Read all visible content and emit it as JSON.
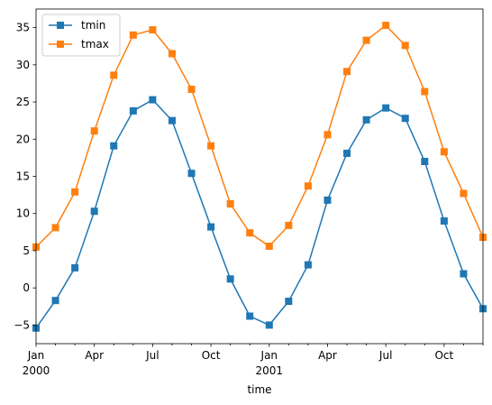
{
  "chart_data": {
    "type": "line",
    "xlabel": "time",
    "ylabel": "",
    "ylim": [
      -7.5,
      37.5
    ],
    "yticks": [
      -5,
      0,
      5,
      10,
      15,
      20,
      25,
      30,
      35
    ],
    "x": [
      "2000-01",
      "2000-02",
      "2000-03",
      "2000-04",
      "2000-05",
      "2000-06",
      "2000-07",
      "2000-08",
      "2000-09",
      "2000-10",
      "2000-11",
      "2000-12",
      "2001-01",
      "2001-02",
      "2001-03",
      "2001-04",
      "2001-05",
      "2001-06",
      "2001-07",
      "2001-08",
      "2001-09",
      "2001-10",
      "2001-11",
      "2001-12"
    ],
    "xtick_labels": [
      {
        "index": 0,
        "label": "Jan",
        "sublabel": "2000"
      },
      {
        "index": 3,
        "label": "Apr",
        "sublabel": ""
      },
      {
        "index": 6,
        "label": "Jul",
        "sublabel": ""
      },
      {
        "index": 9,
        "label": "Oct",
        "sublabel": ""
      },
      {
        "index": 12,
        "label": "Jan",
        "sublabel": "2001"
      },
      {
        "index": 15,
        "label": "Apr",
        "sublabel": ""
      },
      {
        "index": 18,
        "label": "Jul",
        "sublabel": ""
      },
      {
        "index": 21,
        "label": "Oct",
        "sublabel": ""
      }
    ],
    "legend_position": "top-left",
    "grid": false,
    "series": [
      {
        "name": "tmin",
        "color": "#1f77b4",
        "values": [
          -5.4,
          -1.7,
          2.7,
          10.3,
          19.1,
          23.8,
          25.3,
          22.5,
          15.4,
          8.2,
          1.2,
          -3.8,
          -5.0,
          -1.8,
          3.1,
          11.8,
          18.1,
          22.6,
          24.2,
          22.8,
          17.0,
          9.0,
          1.9,
          -2.8
        ]
      },
      {
        "name": "tmax",
        "color": "#ff7f0e",
        "values": [
          5.5,
          8.1,
          12.9,
          21.1,
          28.6,
          34.0,
          34.7,
          31.5,
          26.7,
          19.1,
          11.3,
          7.4,
          5.6,
          8.4,
          13.7,
          20.6,
          29.1,
          33.3,
          35.3,
          32.6,
          26.4,
          18.3,
          12.7,
          6.8
        ]
      }
    ]
  }
}
